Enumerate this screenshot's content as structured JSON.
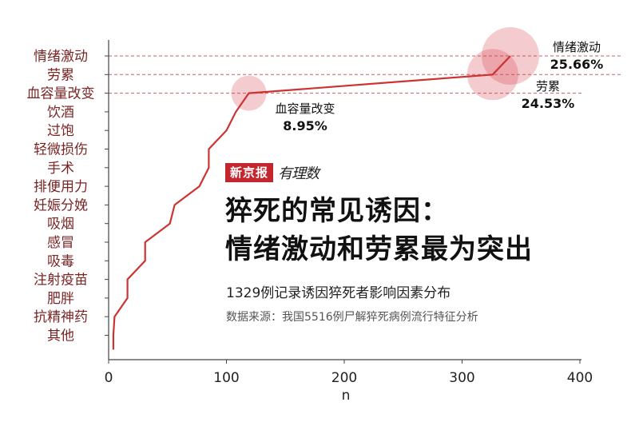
{
  "brand": {
    "logo": "新京报",
    "sub": "有理数"
  },
  "headline": {
    "line1": "猝死的常见诱因：",
    "line2": "情绪激动和劳累最为突出"
  },
  "subtitle": "1329例记录诱因猝死者影响因素分布",
  "source": "数据来源：我国5516例尸解猝死病例流行特征分析",
  "colors": {
    "line": "#cc3333",
    "bubble": "#d9434f",
    "label": "#7a2424",
    "guide": "#b04040"
  },
  "chart_data": {
    "type": "line",
    "title": "",
    "xlabel": "n",
    "ylabel": "",
    "xlim": [
      0,
      400
    ],
    "xticks": [
      0,
      100,
      200,
      300,
      400
    ],
    "categories": [
      "其他",
      "抗精神药",
      "肥胖",
      "注射疫苗",
      "吸毒",
      "感冒",
      "吸烟",
      "妊娠分娩",
      "排便用力",
      "手术",
      "轻微损伤",
      "过饱",
      "饮酒",
      "血容量改变",
      "劳累",
      "情绪激动"
    ],
    "values": [
      4,
      5,
      16,
      16,
      31,
      31,
      52,
      56,
      77,
      85,
      85,
      100,
      108,
      119,
      326,
      341
    ],
    "category_labels_top_to_bottom": [
      "情绪激动",
      "劳累",
      "血容量改变",
      "饮酒",
      "过饱",
      "轻微损伤",
      "手术",
      "排便用力",
      "妊娠分娩",
      "吸烟",
      "感冒",
      "吸毒",
      "注射疫苗",
      "肥胖",
      "抗精神药",
      "其他"
    ],
    "annotations": [
      {
        "category": "情绪激动",
        "label": "情绪激动",
        "value": "25.66%"
      },
      {
        "category": "劳累",
        "label": "劳累",
        "value": "24.53%"
      },
      {
        "category": "血容量改变",
        "label": "血容量改变",
        "value": "8.95%"
      }
    ]
  }
}
